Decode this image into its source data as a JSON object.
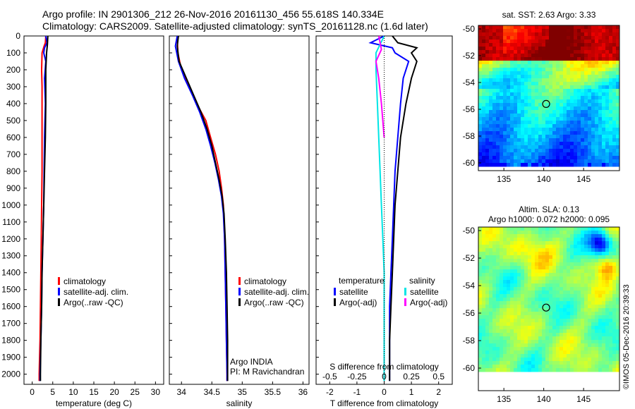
{
  "header": {
    "line1": "Argo profile: IN 2901306_212 26-Nov-2016 20161130_456 55.618S 140.334E",
    "line2": "Climatology: CARS2009. Satellite-adjusted climatology: synTS_20161128.nc (1.6d later)"
  },
  "credit": "©IMOS 05-Dec-2016 20:39:33",
  "colors": {
    "climatology": "#ff0000",
    "satellite": "#0000ff",
    "argo": "#000000",
    "sal_satellite": "#00e5e5",
    "sal_argo": "#ff00ff"
  },
  "chart_data": [
    {
      "type": "line",
      "ylabel": "",
      "xlabel": "temperature (deg C)",
      "xlim": [
        -2,
        32
      ],
      "ylim": [
        2060,
        0
      ],
      "xticks": [
        0,
        5,
        10,
        15,
        20,
        25,
        30
      ],
      "yticks": [
        0,
        100,
        200,
        300,
        400,
        500,
        600,
        700,
        800,
        900,
        1000,
        1100,
        1200,
        1300,
        1400,
        1500,
        1600,
        1700,
        1800,
        1900,
        2000
      ],
      "legend": [
        "climatology",
        "satellite-adj. clim.",
        "Argo(..raw -QC)"
      ],
      "series": [
        {
          "name": "climatology",
          "color": "#ff0000",
          "points": [
            [
              3.3,
              0
            ],
            [
              3.2,
              40
            ],
            [
              2.9,
              60
            ],
            [
              2.4,
              100
            ],
            [
              2.3,
              200
            ],
            [
              2.4,
              300
            ],
            [
              2.4,
              400
            ],
            [
              2.4,
              600
            ],
            [
              2.4,
              800
            ],
            [
              2.3,
              1000
            ],
            [
              2.2,
              1200
            ],
            [
              2.1,
              1400
            ],
            [
              2.0,
              1600
            ],
            [
              1.9,
              1800
            ],
            [
              1.7,
              2000
            ],
            [
              1.7,
              2040
            ]
          ]
        },
        {
          "name": "satellite-adj. clim.",
          "color": "#0000ff",
          "points": [
            [
              3.3,
              0
            ],
            [
              3.6,
              40
            ],
            [
              3.0,
              70
            ],
            [
              2.8,
              100
            ],
            [
              3.3,
              150
            ],
            [
              3.0,
              250
            ],
            [
              3.2,
              400
            ],
            [
              3.0,
              600
            ],
            [
              2.9,
              800
            ],
            [
              2.8,
              1000
            ],
            [
              2.6,
              1200
            ],
            [
              2.4,
              1400
            ],
            [
              2.3,
              1600
            ],
            [
              2.1,
              1800
            ],
            [
              1.9,
              2000
            ],
            [
              1.9,
              2040
            ]
          ]
        },
        {
          "name": "Argo(..raw -QC)",
          "color": "#000000",
          "points": [
            [
              3.8,
              0
            ],
            [
              3.7,
              50
            ],
            [
              3.5,
              100
            ],
            [
              3.3,
              200
            ],
            [
              3.3,
              300
            ],
            [
              3.3,
              400
            ],
            [
              3.2,
              600
            ],
            [
              3.0,
              800
            ],
            [
              2.8,
              1000
            ],
            [
              2.6,
              1200
            ],
            [
              2.4,
              1400
            ],
            [
              2.3,
              1600
            ],
            [
              2.1,
              1800
            ],
            [
              2.0,
              2000
            ],
            [
              2.0,
              2040
            ]
          ]
        }
      ]
    },
    {
      "type": "line",
      "xlabel": "salinity",
      "xlim": [
        33.8,
        36.1
      ],
      "ylim": [
        2060,
        0
      ],
      "xticks": [
        34,
        34.5,
        35,
        35.5,
        36
      ],
      "legend": [
        "climatology",
        "satellite-adj. clim.",
        "Argo(..raw -QC)"
      ],
      "annotations": [
        "Argo INDIA",
        "PI: M Ravichandran"
      ],
      "series": [
        {
          "name": "climatology",
          "color": "#ff0000",
          "points": [
            [
              33.93,
              0
            ],
            [
              33.94,
              100
            ],
            [
              34.0,
              200
            ],
            [
              34.12,
              300
            ],
            [
              34.25,
              400
            ],
            [
              34.4,
              500
            ],
            [
              34.48,
              600
            ],
            [
              34.56,
              700
            ],
            [
              34.62,
              800
            ],
            [
              34.66,
              900
            ],
            [
              34.69,
              1000
            ],
            [
              34.71,
              1200
            ],
            [
              34.72,
              1400
            ],
            [
              34.73,
              1600
            ],
            [
              34.74,
              1800
            ],
            [
              34.75,
              2000
            ],
            [
              34.75,
              2040
            ]
          ]
        },
        {
          "name": "satellite-adj. clim.",
          "color": "#0000ff",
          "points": [
            [
              33.93,
              0
            ],
            [
              33.9,
              60
            ],
            [
              33.95,
              150
            ],
            [
              34.05,
              250
            ],
            [
              34.18,
              350
            ],
            [
              34.3,
              450
            ],
            [
              34.4,
              550
            ],
            [
              34.48,
              650
            ],
            [
              34.55,
              750
            ],
            [
              34.61,
              850
            ],
            [
              34.66,
              950
            ],
            [
              34.69,
              1050
            ],
            [
              34.71,
              1200
            ],
            [
              34.72,
              1400
            ],
            [
              34.73,
              1600
            ],
            [
              34.74,
              1800
            ],
            [
              34.75,
              2000
            ],
            [
              34.75,
              2040
            ]
          ]
        },
        {
          "name": "Argo(..raw -QC)",
          "color": "#000000",
          "points": [
            [
              33.95,
              0
            ],
            [
              33.93,
              60
            ],
            [
              33.96,
              150
            ],
            [
              34.08,
              250
            ],
            [
              34.2,
              350
            ],
            [
              34.32,
              450
            ],
            [
              34.42,
              550
            ],
            [
              34.5,
              650
            ],
            [
              34.56,
              750
            ],
            [
              34.62,
              850
            ],
            [
              34.67,
              950
            ],
            [
              34.7,
              1050
            ],
            [
              34.72,
              1200
            ],
            [
              34.74,
              1400
            ],
            [
              34.75,
              1600
            ],
            [
              34.76,
              1800
            ],
            [
              34.76,
              2000
            ],
            [
              34.76,
              2040
            ]
          ]
        }
      ]
    },
    {
      "type": "line",
      "xlabel": "T difference from climatology",
      "xlabel_top": "S difference from climatology",
      "xlim": [
        -2.5,
        2.5
      ],
      "ylim": [
        2060,
        0
      ],
      "xticks": [
        -2,
        -1,
        0,
        1,
        2
      ],
      "xticks_salinity": [
        -0.5,
        -0.25,
        0,
        0.25,
        0.5
      ],
      "legend_groups": [
        "temperature",
        "salinity"
      ],
      "legend": [
        "satellite",
        "Argo(-adj)",
        "satellite",
        "Argo(-adj)"
      ],
      "series": [
        {
          "name": "satellite",
          "color": "#0000ff",
          "points": [
            [
              0.0,
              0
            ],
            [
              -0.5,
              40
            ],
            [
              0.3,
              70
            ],
            [
              0.4,
              100
            ],
            [
              0.9,
              150
            ],
            [
              0.7,
              250
            ],
            [
              0.6,
              400
            ],
            [
              0.5,
              600
            ],
            [
              0.4,
              800
            ],
            [
              0.35,
              1000
            ],
            [
              0.3,
              1200
            ],
            [
              0.25,
              1400
            ],
            [
              0.2,
              1600
            ],
            [
              0.2,
              1800
            ],
            [
              0.2,
              2000
            ],
            [
              0.2,
              2040
            ]
          ]
        },
        {
          "name": "Argo(-adj)",
          "color": "#000000",
          "points": [
            [
              0.3,
              0
            ],
            [
              0.5,
              40
            ],
            [
              1.2,
              70
            ],
            [
              1.0,
              100
            ],
            [
              1.2,
              150
            ],
            [
              1.0,
              250
            ],
            [
              0.8,
              400
            ],
            [
              0.6,
              600
            ],
            [
              0.5,
              800
            ],
            [
              0.4,
              1000
            ],
            [
              0.35,
              1200
            ],
            [
              0.3,
              1400
            ],
            [
              0.25,
              1600
            ],
            [
              0.2,
              1800
            ],
            [
              0.2,
              2000
            ],
            [
              0.2,
              2040
            ]
          ]
        },
        {
          "name": "satellite",
          "color": "#00e5e5",
          "points": [
            [
              0.0,
              0
            ],
            [
              -0.3,
              100
            ],
            [
              -0.3,
              200
            ],
            [
              -0.25,
              400
            ],
            [
              -0.2,
              600
            ],
            [
              -0.15,
              800
            ],
            [
              -0.1,
              1000
            ],
            [
              -0.05,
              1200
            ],
            [
              0.0,
              1400
            ],
            [
              0.0,
              1600
            ],
            [
              0.0,
              1800
            ],
            [
              0.0,
              2000
            ],
            [
              0.0,
              2040
            ]
          ]
        },
        {
          "name": "Argo(-adj)",
          "color": "#ff00ff",
          "points": [
            [
              -0.2,
              0
            ],
            [
              -0.1,
              80
            ],
            [
              -0.3,
              150
            ],
            [
              -0.2,
              250
            ],
            [
              -0.1,
              400
            ],
            [
              0.0,
              600
            ]
          ]
        }
      ]
    }
  ],
  "maps": [
    {
      "title": "sat. SST: 2.63 Argo: 3.33",
      "xticks": [
        "135",
        "140",
        "145"
      ],
      "yticks": [
        "-50",
        "-52",
        "-54",
        "-56",
        "-58",
        "-60"
      ]
    },
    {
      "title": "Altim. SLA: 0.13",
      "title2": "Argo h1000: 0.072 h2000: 0.095",
      "xticks": [
        "135",
        "140",
        "145"
      ],
      "yticks": [
        "-50",
        "-52",
        "-54",
        "-56",
        "-58",
        "-60"
      ]
    }
  ]
}
